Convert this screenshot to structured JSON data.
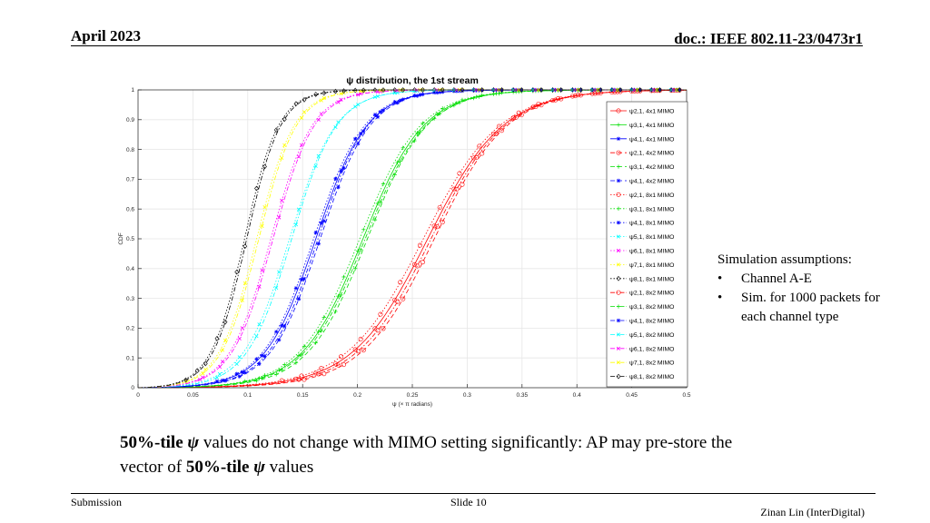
{
  "header": {
    "date": "April 2023",
    "doc": "doc.: IEEE 802.11-23/0473r1"
  },
  "footer": {
    "submission": "Submission",
    "slide": "Slide 10",
    "author": "Zinan Lin (InterDigital)"
  },
  "notes": {
    "title": "Simulation assumptions:",
    "items": [
      "Channel A-E",
      "Sim. for 1000 packets for each channel type"
    ]
  },
  "caption": {
    "part1": "50%-tile",
    "psi": "ψ",
    "part2": " values do not change with MIMO setting significantly: AP may pre-store the vector of ",
    "part3": "50%-tile",
    "part4": " values"
  },
  "chart_data": {
    "type": "line",
    "title": "ψ distribution, the 1st stream",
    "xlabel": "ψ (× π radians)",
    "ylabel": "CDF",
    "xlim": [
      0,
      0.5
    ],
    "ylim": [
      0,
      1
    ],
    "x_ticks": [
      "0",
      "0.05",
      "0.1",
      "0.15",
      "0.2",
      "0.25",
      "0.3",
      "0.35",
      "0.4",
      "0.45",
      "0.5"
    ],
    "y_ticks": [
      "0",
      "0.1",
      "0.2",
      "0.3",
      "0.4",
      "0.5",
      "0.6",
      "0.7",
      "0.8",
      "0.9",
      "1"
    ],
    "grid": true,
    "legend_position": "right",
    "colors": {
      "psi21": "#ff0000",
      "psi31": "#00dd00",
      "psi41": "#0000ff",
      "psi51": "#00ffff",
      "psi61": "#ff00ff",
      "psi71": "#ffff00",
      "psi81": "#000000"
    },
    "series": [
      {
        "name": "ψ2,1, 4x1 MIMO",
        "color": "#ff0000",
        "dash": "solid",
        "marker": "o",
        "median": 0.264,
        "spread": 0.062
      },
      {
        "name": "ψ3,1, 4x1 MIMO",
        "color": "#00dd00",
        "dash": "solid",
        "marker": "+",
        "median": 0.205,
        "spread": 0.05
      },
      {
        "name": "ψ4,1, 4x1 MIMO",
        "color": "#0000ff",
        "dash": "solid",
        "marker": "*",
        "median": 0.162,
        "spread": 0.042
      },
      {
        "name": "ψ2,1, 4x2 MIMO",
        "color": "#ff0000",
        "dash": "dash",
        "marker": "o",
        "median": 0.27,
        "spread": 0.06
      },
      {
        "name": "ψ3,1, 4x2 MIMO",
        "color": "#00dd00",
        "dash": "dash",
        "marker": "+",
        "median": 0.209,
        "spread": 0.049
      },
      {
        "name": "ψ4,1, 4x2 MIMO",
        "color": "#0000ff",
        "dash": "dash",
        "marker": "*",
        "median": 0.166,
        "spread": 0.041
      },
      {
        "name": "ψ2,1, 8x1 MIMO",
        "color": "#ff0000",
        "dash": "dot",
        "marker": "o",
        "median": 0.26,
        "spread": 0.063
      },
      {
        "name": "ψ3,1, 8x1 MIMO",
        "color": "#00dd00",
        "dash": "dot",
        "marker": "+",
        "median": 0.202,
        "spread": 0.05
      },
      {
        "name": "ψ4,1, 8x1 MIMO",
        "color": "#0000ff",
        "dash": "dot",
        "marker": "*",
        "median": 0.16,
        "spread": 0.042
      },
      {
        "name": "ψ5,1, 8x1 MIMO",
        "color": "#00ffff",
        "dash": "dot",
        "marker": "x",
        "median": 0.138,
        "spread": 0.038
      },
      {
        "name": "ψ6,1, 8x1 MIMO",
        "color": "#ff00ff",
        "dash": "dot",
        "marker": "x",
        "median": 0.121,
        "spread": 0.034
      },
      {
        "name": "ψ7,1, 8x1 MIMO",
        "color": "#ffff00",
        "dash": "dot",
        "marker": "x",
        "median": 0.108,
        "spread": 0.031
      },
      {
        "name": "ψ8,1, 8x1 MIMO",
        "color": "#000000",
        "dash": "dot",
        "marker": "d",
        "median": 0.097,
        "spread": 0.028
      },
      {
        "name": "ψ2,1, 8x2 MIMO",
        "color": "#ff0000",
        "dash": "dashdot",
        "marker": "o",
        "median": 0.267,
        "spread": 0.061
      },
      {
        "name": "ψ3,1, 8x2 MIMO",
        "color": "#00dd00",
        "dash": "dashdot",
        "marker": "+",
        "median": 0.207,
        "spread": 0.05
      },
      {
        "name": "ψ4,1, 8x2 MIMO",
        "color": "#0000ff",
        "dash": "dashdot",
        "marker": "*",
        "median": 0.164,
        "spread": 0.041
      },
      {
        "name": "ψ5,1, 8x2 MIMO",
        "color": "#00ffff",
        "dash": "dashdot",
        "marker": "x",
        "median": 0.14,
        "spread": 0.037
      },
      {
        "name": "ψ6,1, 8x2 MIMO",
        "color": "#ff00ff",
        "dash": "dashdot",
        "marker": "x",
        "median": 0.123,
        "spread": 0.034
      },
      {
        "name": "ψ7,1, 8x2 MIMO",
        "color": "#ffff00",
        "dash": "dashdot",
        "marker": "x",
        "median": 0.11,
        "spread": 0.031
      },
      {
        "name": "ψ8,1, 8x2 MIMO",
        "color": "#000000",
        "dash": "dashdot",
        "marker": "d",
        "median": 0.099,
        "spread": 0.028
      }
    ]
  }
}
